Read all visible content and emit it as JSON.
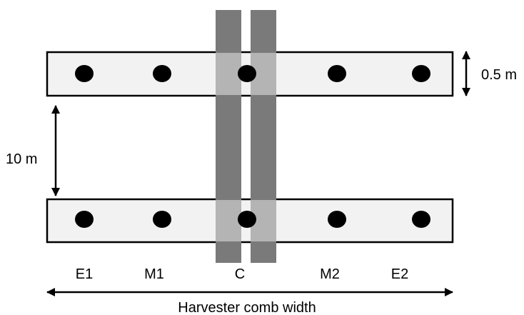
{
  "labels": {
    "row_height": "0.5 m",
    "row_spacing": "10 m",
    "positions": [
      "E1",
      "M1",
      "C",
      "M2",
      "E2"
    ],
    "width": "Harvester comb width"
  },
  "colors": {
    "row_fill": "#f2f2f2",
    "track_dark": "#7a7a7a",
    "track_light": "#b4b4b4",
    "dot": "#000000"
  }
}
